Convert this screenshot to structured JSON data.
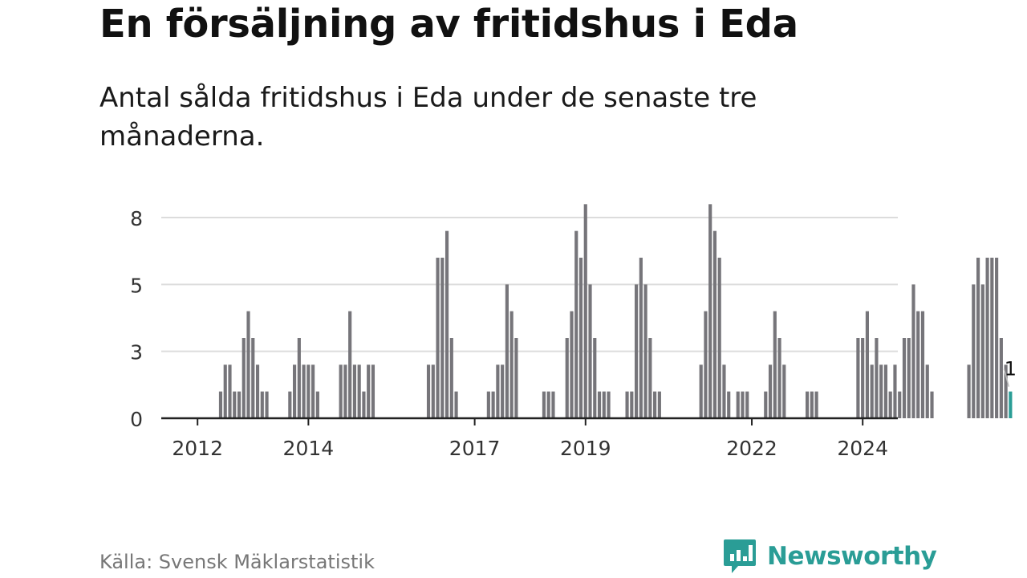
{
  "header": {
    "title": "En försäljning av fritidshus i Eda",
    "subtitle": "Antal sålda fritidshus i Eda under de senaste tre månaderna."
  },
  "footer": {
    "source": "Källa: Svensk Mäklarstatistik",
    "brand": "Newsworthy"
  },
  "colors": {
    "bar": "#76757a",
    "highlight": "#2a9d96",
    "grid": "#dcdcdc",
    "axis": "#222222",
    "tick_text": "#333333"
  },
  "chart_data": {
    "type": "bar",
    "xlabel": "",
    "ylabel": "",
    "ylim": [
      0,
      9
    ],
    "yticks": [
      {
        "value": 0,
        "label": "0"
      },
      {
        "value": 2.5,
        "label": "3"
      },
      {
        "value": 5,
        "label": "5"
      },
      {
        "value": 7.5,
        "label": "8"
      }
    ],
    "xticks": [
      {
        "value": 2012.0,
        "label": "2012"
      },
      {
        "value": 2014.0,
        "label": "2014"
      },
      {
        "value": 2017.0,
        "label": "2017"
      },
      {
        "value": 2019.0,
        "label": "2019"
      },
      {
        "value": 2022.0,
        "label": "2022"
      },
      {
        "value": 2024.0,
        "label": "2024"
      }
    ],
    "grid": true,
    "x_start": 2011.5,
    "x_end": 2024.667,
    "step": 0.08333,
    "values": [
      0,
      0,
      0,
      0,
      0,
      0,
      0,
      0,
      0,
      0,
      0,
      1,
      2,
      2,
      1,
      1,
      3,
      4,
      3,
      2,
      1,
      1,
      0,
      0,
      0,
      0,
      1,
      2,
      3,
      2,
      2,
      2,
      1,
      0,
      0,
      0,
      0,
      2,
      2,
      4,
      2,
      2,
      1,
      2,
      2,
      0,
      0,
      0,
      0,
      0,
      0,
      0,
      0,
      0,
      0,
      0,
      2,
      2,
      6,
      6,
      7,
      3,
      1,
      0,
      0,
      0,
      0,
      0,
      0,
      1,
      1,
      2,
      2,
      5,
      4,
      3,
      0,
      0,
      0,
      0,
      0,
      1,
      1,
      1,
      0,
      0,
      3,
      4,
      7,
      6,
      8,
      5,
      3,
      1,
      1,
      1,
      0,
      0,
      0,
      1,
      1,
      5,
      6,
      5,
      3,
      1,
      1,
      0,
      0,
      0,
      0,
      0,
      0,
      0,
      0,
      2,
      4,
      8,
      7,
      6,
      2,
      1,
      0,
      1,
      1,
      1,
      0,
      0,
      0,
      1,
      2,
      4,
      3,
      2,
      0,
      0,
      0,
      0,
      1,
      1,
      1,
      0,
      0,
      0,
      0,
      0,
      0,
      0,
      0,
      3,
      3,
      4,
      2,
      3,
      2,
      2,
      1,
      2,
      1,
      3,
      3,
      5,
      4,
      4,
      2,
      1,
      0,
      0,
      0,
      0,
      0,
      0,
      0,
      2,
      5,
      6,
      5,
      6,
      6,
      6,
      3,
      2,
      1
    ],
    "highlight_last": true,
    "annotation": {
      "text": "1"
    }
  }
}
